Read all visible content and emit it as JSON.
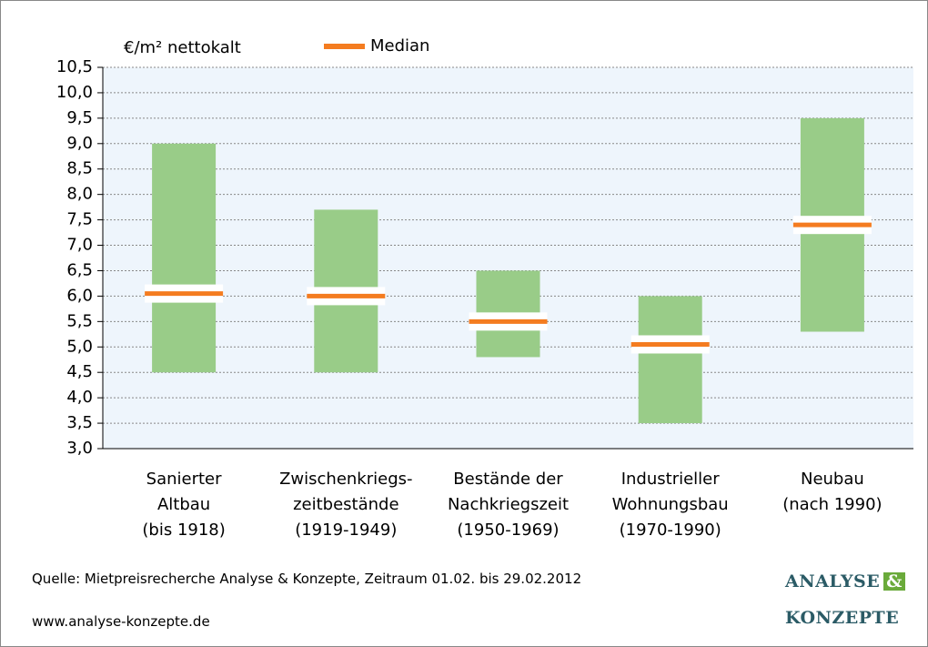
{
  "chart_data": {
    "type": "range-median",
    "y_label": "€/m² nettokalt",
    "categories": [
      "Sanierter\nAltbau\n(bis 1918)",
      "Zwischenkriegs-\nzeitbestände\n(1919-1949)",
      "Bestände der\nNachkriegszeit\n(1950-1969)",
      "Industrieller\nWohnungsbau\n(1970-1990)",
      "Neubau\n(nach 1990)"
    ],
    "low": [
      4.5,
      4.5,
      4.8,
      3.5,
      5.3
    ],
    "high": [
      9.0,
      7.7,
      6.5,
      6.0,
      9.5
    ],
    "range_color": "#99cc88",
    "series": [
      {
        "name": "Median",
        "color": "#f47c20",
        "values": [
          6.05,
          6.0,
          5.5,
          5.05,
          7.4
        ]
      }
    ],
    "ylim": [
      3.0,
      10.5
    ],
    "yticks": [
      {
        "value": 3.0,
        "label": "3,0"
      },
      {
        "value": 3.5,
        "label": "3,5"
      },
      {
        "value": 4.0,
        "label": "4,0"
      },
      {
        "value": 4.5,
        "label": "4,5"
      },
      {
        "value": 5.0,
        "label": "5,0"
      },
      {
        "value": 5.5,
        "label": "5,5"
      },
      {
        "value": 6.0,
        "label": "6,0"
      },
      {
        "value": 6.5,
        "label": "6,5"
      },
      {
        "value": 7.0,
        "label": "7,0"
      },
      {
        "value": 7.5,
        "label": "7,5"
      },
      {
        "value": 8.0,
        "label": "8,0"
      },
      {
        "value": 8.5,
        "label": "8,5"
      },
      {
        "value": 9.0,
        "label": "9,0"
      },
      {
        "value": 9.5,
        "label": "9,5"
      },
      {
        "value": 10.0,
        "label": "10,0"
      },
      {
        "value": 10.5,
        "label": "10,5"
      }
    ],
    "grid": true,
    "source": "Quelle: Mietpreisrecherche Analyse & Konzepte, Zeitraum 01.02. bis 29.02.2012",
    "website": "www.analyse-konzepte.de",
    "logo": [
      "ANALYSE",
      "&",
      "KONZEPTE"
    ]
  }
}
